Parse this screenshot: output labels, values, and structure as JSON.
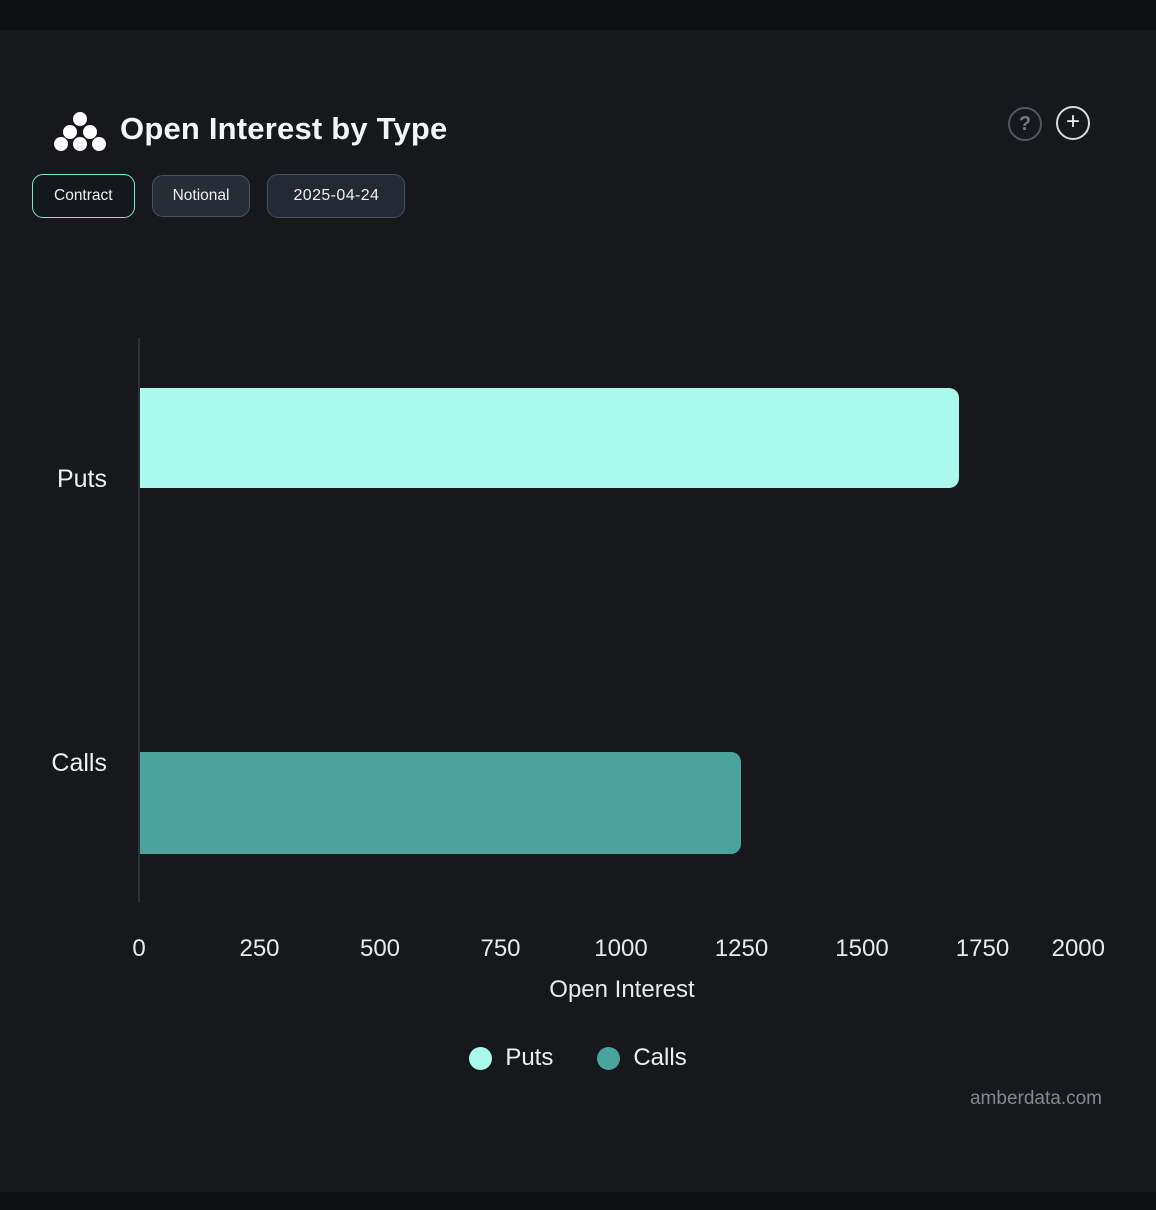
{
  "header": {
    "title": "Open Interest by Type",
    "help_icon": "?",
    "add_icon": "+"
  },
  "controls": {
    "contract_label": "Contract",
    "notional_label": "Notional",
    "date_label": "2025-04-24"
  },
  "watermark": "amberdata.com",
  "colors": {
    "panel_background": "#16181c",
    "outer_background": "#0d0f13",
    "selected_pill_border": "#79e9d3",
    "axis_line": "#2e3136",
    "puts": "#a9f9ec",
    "calls": "#4aa49c"
  },
  "chart_data": {
    "type": "bar",
    "orientation": "horizontal",
    "title": "Open Interest by Type",
    "categories": [
      "Puts",
      "Calls"
    ],
    "values": [
      1700,
      1246
    ],
    "colors": [
      "#a9f9ec",
      "#4aa49c"
    ],
    "xlabel": "Open Interest",
    "xlim": [
      0,
      2000
    ],
    "xticks": [
      0,
      250,
      500,
      750,
      1000,
      1250,
      1500,
      1750,
      2000
    ],
    "grid": false,
    "legend": {
      "position": "bottom",
      "entries": [
        "Puts",
        "Calls"
      ]
    }
  }
}
